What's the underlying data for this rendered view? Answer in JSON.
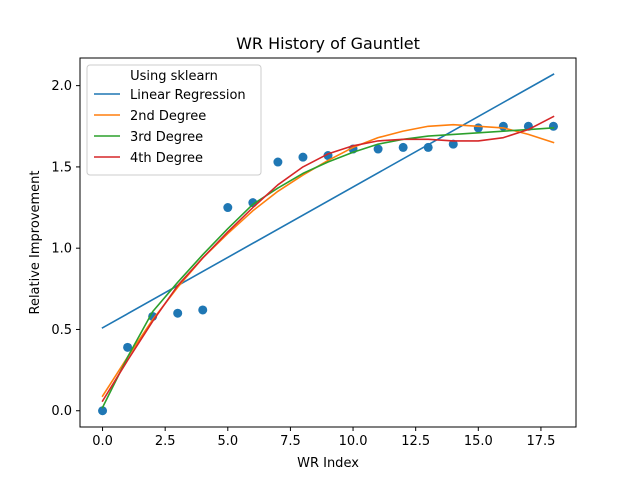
{
  "chart_data": {
    "type": "scatter",
    "title": "WR History of Gauntlet",
    "xlabel": "WR Index",
    "ylabel": "Relative Improvement",
    "xlim": [
      -0.9,
      18.9
    ],
    "ylim": [
      -0.1,
      2.17
    ],
    "xticks": [
      0,
      2.5,
      5,
      7.5,
      10,
      12.5,
      15,
      17.5
    ],
    "xtick_labels": [
      "0.0",
      "2.5",
      "5.0",
      "7.5",
      "10.0",
      "12.5",
      "15.0",
      "17.5"
    ],
    "yticks": [
      0,
      0.5,
      1,
      1.5,
      2
    ],
    "ytick_labels": [
      "0.0",
      "0.5",
      "1.0",
      "1.5",
      "2.0"
    ],
    "grid": false,
    "legend": {
      "title": "Using sklearn",
      "placement": "upper-left"
    },
    "points": {
      "color": "#1f77b4",
      "x": [
        0,
        1,
        2,
        3,
        4,
        5,
        6,
        7,
        8,
        9,
        10,
        11,
        12,
        13,
        14,
        15,
        16,
        17,
        18
      ],
      "y": [
        0.0,
        0.39,
        0.58,
        0.6,
        0.62,
        1.25,
        1.28,
        1.53,
        1.56,
        1.57,
        1.61,
        1.61,
        1.62,
        1.62,
        1.64,
        1.74,
        1.75,
        1.75,
        1.75
      ]
    },
    "series": [
      {
        "name": "Linear Regression",
        "color": "#1f77b4",
        "x": [
          0,
          18
        ],
        "y": [
          0.51,
          2.07
        ]
      },
      {
        "name": "2nd Degree",
        "color": "#ff7f0e",
        "x": [
          0,
          1,
          2,
          3,
          4,
          5,
          6,
          7,
          8,
          9,
          10,
          11,
          12,
          13,
          14,
          15,
          16,
          17,
          18
        ],
        "y": [
          0.09,
          0.33,
          0.56,
          0.76,
          0.94,
          1.09,
          1.23,
          1.35,
          1.45,
          1.54,
          1.62,
          1.68,
          1.72,
          1.75,
          1.76,
          1.75,
          1.74,
          1.7,
          1.65
        ]
      },
      {
        "name": "3rd Degree",
        "color": "#2ca02c",
        "x": [
          0,
          1,
          2,
          3,
          4,
          5,
          6,
          7,
          8,
          9,
          10,
          11,
          12,
          13,
          14,
          15,
          16,
          17,
          18
        ],
        "y": [
          0.02,
          0.33,
          0.61,
          0.79,
          0.96,
          1.12,
          1.27,
          1.37,
          1.46,
          1.53,
          1.59,
          1.64,
          1.67,
          1.69,
          1.7,
          1.71,
          1.72,
          1.73,
          1.74
        ]
      },
      {
        "name": "4th Degree",
        "color": "#d62728",
        "x": [
          0,
          1,
          2,
          3,
          4,
          5,
          6,
          7,
          8,
          9,
          10,
          11,
          12,
          13,
          14,
          15,
          16,
          17,
          18
        ],
        "y": [
          0.06,
          0.31,
          0.55,
          0.77,
          0.94,
          1.1,
          1.25,
          1.39,
          1.5,
          1.58,
          1.63,
          1.66,
          1.67,
          1.67,
          1.66,
          1.66,
          1.68,
          1.73,
          1.81
        ]
      }
    ]
  }
}
